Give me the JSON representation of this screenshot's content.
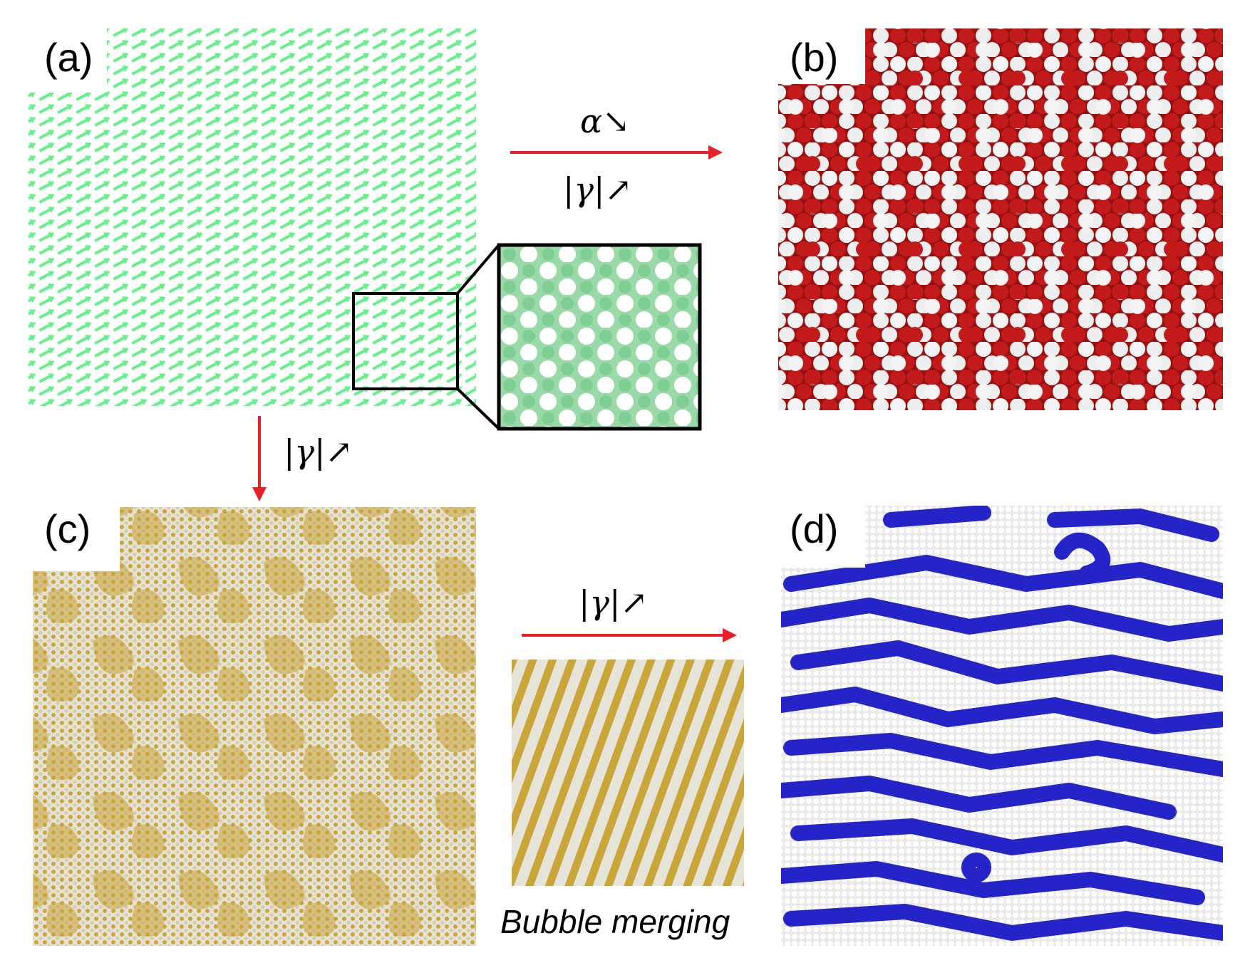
{
  "panels": {
    "a": {
      "label": "(a)",
      "color": "#66f08a",
      "inset_colors": [
        "#ffffff",
        "#8fd9a2"
      ]
    },
    "b": {
      "label": "(b)",
      "colors": [
        "#c21a1a",
        "#f2f2f2"
      ]
    },
    "c": {
      "label": "(c)",
      "colors": [
        "#c9a63a",
        "#e6e3d8"
      ]
    },
    "d": {
      "label": "(d)",
      "colors": [
        "#2424c8",
        "#e8e8e8"
      ]
    }
  },
  "arrows": {
    "a_to_b": {
      "top_text": "α↘",
      "bottom_text": "|γ|↗",
      "color": "#e8202a"
    },
    "a_to_c": {
      "text": "|γ|↗",
      "color": "#e8202a"
    },
    "c_to_d": {
      "text": "|γ|↗",
      "color": "#e8202a"
    }
  },
  "intermediate": {
    "caption": "Bubble merging",
    "colors": [
      "#c9a63a",
      "#e6e3d8"
    ]
  }
}
